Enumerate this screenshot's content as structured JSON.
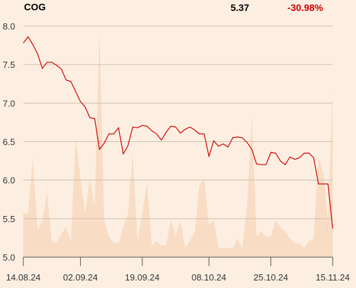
{
  "chart_data": {
    "type": "line",
    "title": "COG",
    "price": "5.37",
    "change": "-30.98%",
    "categories": [
      "14.08.24",
      null,
      null,
      null,
      null,
      null,
      null,
      null,
      null,
      null,
      null,
      null,
      "02.09.24",
      null,
      null,
      null,
      null,
      null,
      null,
      null,
      null,
      null,
      null,
      null,
      null,
      "19.09.24",
      null,
      null,
      null,
      null,
      null,
      null,
      null,
      null,
      null,
      null,
      null,
      null,
      null,
      "08.10.24",
      null,
      null,
      null,
      null,
      null,
      null,
      null,
      null,
      null,
      null,
      null,
      null,
      "25.10.24",
      null,
      null,
      null,
      null,
      null,
      null,
      null,
      null,
      null,
      null,
      null,
      null,
      "15.11.24"
    ],
    "series": [
      {
        "color": "#cc0000",
        "values": [
          7.78,
          7.86,
          7.76,
          7.64,
          7.45,
          7.53,
          7.53,
          7.49,
          7.44,
          7.3,
          7.28,
          7.15,
          7.02,
          6.95,
          6.81,
          6.8,
          6.4,
          6.48,
          6.6,
          6.6,
          6.68,
          6.34,
          6.45,
          6.69,
          6.68,
          6.71,
          6.7,
          6.64,
          6.6,
          6.52,
          6.62,
          6.7,
          6.69,
          6.61,
          6.66,
          6.69,
          6.65,
          6.6,
          6.6,
          6.31,
          6.51,
          6.44,
          6.47,
          6.43,
          6.55,
          6.56,
          6.55,
          6.49,
          6.4,
          6.21,
          6.2,
          6.2,
          6.36,
          6.35,
          6.25,
          6.2,
          6.3,
          6.27,
          6.29,
          6.35,
          6.35,
          6.29,
          5.95,
          5.95,
          5.95,
          5.37
        ]
      },
      {
        "type": "area",
        "axis": "y2",
        "color": "#f8dcc4",
        "values": [
          19,
          19,
          43,
          12,
          16,
          28,
          7,
          6,
          10,
          13,
          7,
          52,
          34,
          19,
          34,
          22,
          99,
          16,
          9,
          6,
          6,
          13,
          19,
          45,
          7,
          19,
          32,
          5,
          7,
          5,
          5,
          16,
          9,
          16,
          4,
          7,
          11,
          31,
          34,
          14,
          16,
          4,
          4,
          4,
          4,
          8,
          4,
          22,
          61,
          9,
          11,
          9,
          9,
          16,
          13,
          11,
          8,
          6,
          6,
          4,
          7,
          8,
          43,
          37,
          16,
          73
        ]
      }
    ],
    "ylim": [
      5,
      8
    ],
    "yticks": [
      {
        "value": 5,
        "label": "5.0"
      },
      {
        "value": 5.5,
        "label": "5.5"
      },
      {
        "value": 6,
        "label": "6.0"
      },
      {
        "value": 6.5,
        "label": "6.5"
      },
      {
        "value": 7,
        "label": "7.0"
      },
      {
        "value": 7.5,
        "label": "7.5"
      },
      {
        "value": 8,
        "label": "8.0"
      }
    ],
    "y2lim": [
      0,
      100
    ],
    "grid": true,
    "change_color": "#cc0000"
  }
}
